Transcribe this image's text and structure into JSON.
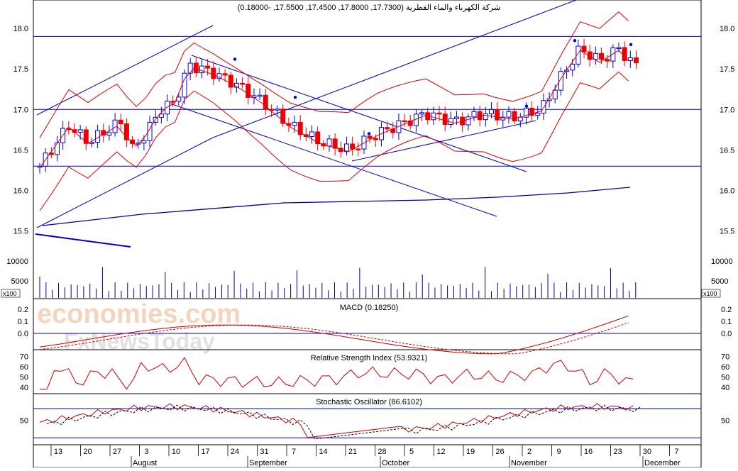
{
  "header": {
    "title": "شركة الكهرباء والماء القطرية (17.7300, 17.8000, 17.4500, 17.5500, -0.18000)"
  },
  "watermark": {
    "line1": "economies.com",
    "line2": "FxNewsToday"
  },
  "colors": {
    "up_candle": "#0000dd",
    "down_candle": "#ee0000",
    "trendline": "#0000cc",
    "bollinger": "#dd0000",
    "moving_average": "#0000aa",
    "volume": "#000099",
    "macd_line": "#cc0000",
    "indicator_grid": "#0000cc",
    "watermark": "#f2c6a8"
  },
  "panels": {
    "price": {
      "y_ticks": [
        "18.0",
        "17.5",
        "17.0",
        "16.5",
        "16.0",
        "15.5"
      ],
      "volume_ticks": [
        "10000",
        "5000"
      ],
      "volume_unit": "x100"
    },
    "macd": {
      "label": "MACD (0.18250)",
      "y_ticks": [
        "0.2",
        "0.1",
        "0.0"
      ]
    },
    "rsi": {
      "label": "Relative Strength Index (53.9321)",
      "y_ticks": [
        "70",
        "60",
        "50",
        "40"
      ]
    },
    "stochastic": {
      "label": "Stochastic Oscillator (86.6102)",
      "y_ticks": [
        "50"
      ]
    }
  },
  "x_axis": {
    "day_labels": [
      "13",
      "20",
      "27",
      "3",
      "10",
      "17",
      "24",
      "31",
      "7",
      "14",
      "21",
      "28",
      "5",
      "12",
      "19",
      "26",
      "2",
      "9",
      "16",
      "23",
      "30",
      "7"
    ],
    "month_labels": [
      "August",
      "September",
      "October",
      "November",
      "December"
    ]
  },
  "chart_data": {
    "type": "candlestick",
    "instrument": "شركة الكهرباء والماء القطرية",
    "last_ohlc_change": {
      "open": 17.73,
      "high": 17.8,
      "low": 17.45,
      "close": 17.55,
      "change": -0.18
    },
    "price_range": [
      15.2,
      18.35
    ],
    "horizontal_levels": [
      17.9,
      17.0,
      16.3
    ],
    "indicators": {
      "macd": 0.1825,
      "rsi": 53.9321,
      "stochastic": 86.6102
    },
    "volume_scale": "x100",
    "grid": false
  }
}
